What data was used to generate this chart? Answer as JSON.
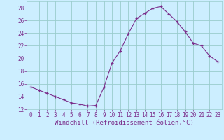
{
  "x": [
    0,
    1,
    2,
    3,
    4,
    5,
    6,
    7,
    8,
    9,
    10,
    11,
    12,
    13,
    14,
    15,
    16,
    17,
    18,
    19,
    20,
    21,
    22,
    23
  ],
  "y": [
    15.5,
    15.0,
    14.5,
    14.0,
    13.5,
    13.0,
    12.8,
    12.5,
    12.6,
    15.5,
    19.3,
    21.2,
    23.9,
    26.3,
    27.1,
    27.9,
    28.2,
    27.0,
    25.8,
    24.2,
    22.4,
    22.0,
    20.4,
    19.5
  ],
  "xlabel": "Windchill (Refroidissement éolien,°C)",
  "ylim": [
    12,
    29
  ],
  "xlim": [
    -0.5,
    23.5
  ],
  "yticks": [
    12,
    14,
    16,
    18,
    20,
    22,
    24,
    26,
    28
  ],
  "xticks": [
    0,
    1,
    2,
    3,
    4,
    5,
    6,
    7,
    8,
    9,
    10,
    11,
    12,
    13,
    14,
    15,
    16,
    17,
    18,
    19,
    20,
    21,
    22,
    23
  ],
  "line_color": "#7b2d8b",
  "marker": "+",
  "bg_color": "#cceeff",
  "grid_color": "#99cccc",
  "tick_label_fontsize": 5.5,
  "xlabel_fontsize": 6.5
}
